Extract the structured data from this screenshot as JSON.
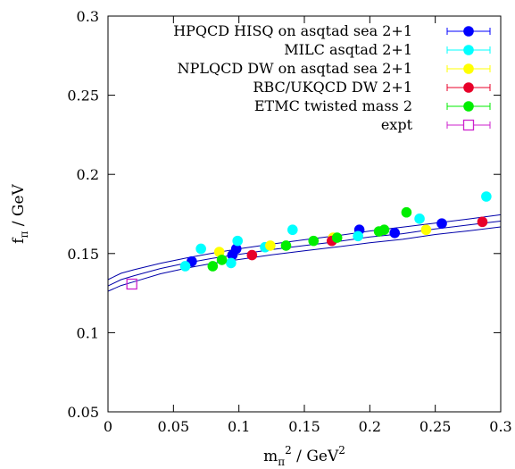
{
  "chart_data": {
    "type": "scatter",
    "xlabel": {
      "base": "m",
      "sub": "π",
      "sup": "2",
      "rest": " / GeV",
      "rest_sup": "2"
    },
    "ylabel": {
      "base": "f",
      "sub": "π",
      "rest": " / GeV"
    },
    "xlim": [
      0,
      0.3
    ],
    "ylim": [
      0.05,
      0.3
    ],
    "xticks": [
      "0",
      "0.05",
      "0.1",
      "0.15",
      "0.2",
      "0.25",
      "0.3"
    ],
    "yticks": [
      "0.05",
      "0.1",
      "0.15",
      "0.2",
      "0.25",
      "0.3"
    ],
    "grid": false,
    "legend_position": "top-right",
    "series": [
      {
        "name": "HPQCD HISQ on asqtad sea 2+1",
        "color": "#0000ff",
        "marker": "circle",
        "x": [
          0.064,
          0.095,
          0.098,
          0.192,
          0.219,
          0.255
        ],
        "y": [
          0.145,
          0.149,
          0.153,
          0.165,
          0.163,
          0.169
        ]
      },
      {
        "name": "MILC asqtad  2+1",
        "color": "#00ffff",
        "marker": "circle",
        "x": [
          0.059,
          0.071,
          0.094,
          0.099,
          0.12,
          0.141,
          0.191,
          0.238,
          0.289
        ],
        "y": [
          0.142,
          0.153,
          0.144,
          0.158,
          0.154,
          0.165,
          0.161,
          0.172,
          0.186
        ]
      },
      {
        "name": "NPLQCD DW on asqtad sea 2+1",
        "color": "#ffff00",
        "marker": "circle",
        "x": [
          0.085,
          0.124,
          0.172,
          0.243
        ],
        "y": [
          0.151,
          0.155,
          0.16,
          0.165
        ]
      },
      {
        "name": "RBC/UKQCD DW 2+1",
        "color": "#e8002a",
        "marker": "circle",
        "x": [
          0.11,
          0.171,
          0.286
        ],
        "y": [
          0.149,
          0.158,
          0.17
        ]
      },
      {
        "name": "ETMC twisted mass 2",
        "color": "#00ee00",
        "marker": "circle",
        "x": [
          0.08,
          0.087,
          0.136,
          0.157,
          0.175,
          0.207,
          0.211,
          0.228
        ],
        "y": [
          0.142,
          0.146,
          0.155,
          0.158,
          0.16,
          0.164,
          0.165,
          0.176
        ]
      },
      {
        "name": "expt",
        "color": "#cc22cc",
        "marker": "square-open",
        "x": [
          0.0182
        ],
        "y": [
          0.1307
        ]
      }
    ],
    "fit_band": {
      "color": "#0000aa",
      "x": [
        0,
        0.01,
        0.02,
        0.04,
        0.06,
        0.08,
        0.1,
        0.125,
        0.15,
        0.175,
        0.2,
        0.225,
        0.25,
        0.275,
        0.3
      ],
      "center": [
        0.1295,
        0.1335,
        0.136,
        0.1405,
        0.144,
        0.147,
        0.1495,
        0.1525,
        0.155,
        0.1575,
        0.1605,
        0.1625,
        0.1655,
        0.168,
        0.1705
      ],
      "upper": [
        0.1335,
        0.1375,
        0.1398,
        0.1438,
        0.1472,
        0.1502,
        0.153,
        0.156,
        0.1587,
        0.1613,
        0.1642,
        0.1667,
        0.1692,
        0.1718,
        0.1745
      ],
      "lower": [
        0.1262,
        0.1298,
        0.1322,
        0.1372,
        0.1408,
        0.1438,
        0.1462,
        0.1492,
        0.1517,
        0.1542,
        0.1568,
        0.159,
        0.162,
        0.1643,
        0.1668
      ]
    }
  }
}
